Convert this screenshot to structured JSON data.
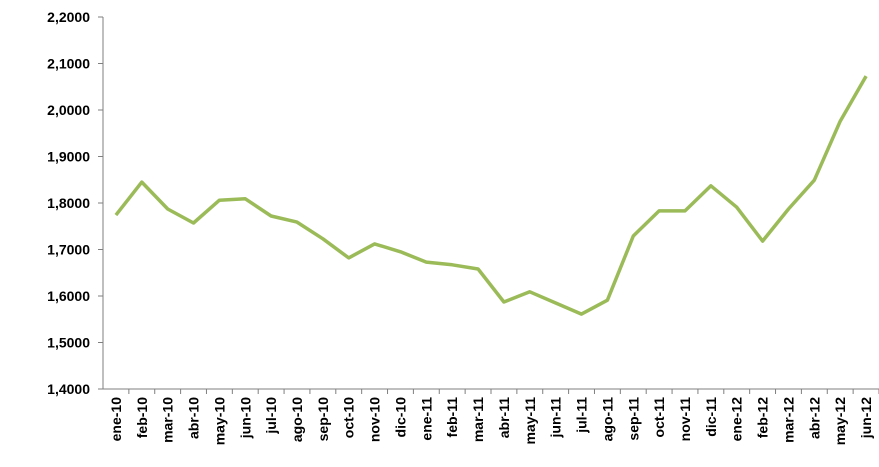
{
  "chart_data": {
    "type": "line",
    "categories": [
      "ene-10",
      "feb-10",
      "mar-10",
      "abr-10",
      "may-10",
      "jun-10",
      "jul-10",
      "ago-10",
      "sep-10",
      "oct-10",
      "nov-10",
      "dic-10",
      "ene-11",
      "feb-11",
      "mar-11",
      "abr-11",
      "may-11",
      "jun-11",
      "jul-11",
      "ago-11",
      "sep-11",
      "oct-11",
      "nov-11",
      "dic-11",
      "ene-12",
      "feb-12",
      "mar-12",
      "abr-12",
      "may-12",
      "jun-12"
    ],
    "values": [
      1.774,
      1.845,
      1.787,
      1.757,
      1.806,
      1.809,
      1.772,
      1.759,
      1.723,
      1.682,
      1.712,
      1.695,
      1.673,
      1.667,
      1.658,
      1.587,
      1.609,
      1.585,
      1.561,
      1.591,
      1.729,
      1.783,
      1.783,
      1.837,
      1.791,
      1.718,
      1.787,
      1.849,
      1.976,
      2.073
    ],
    "color": "#9bbb59",
    "ylim": [
      1.4,
      2.2
    ],
    "yticks": [
      {
        "value": 1.4,
        "label": "1,4000"
      },
      {
        "value": 1.5,
        "label": "1,5000"
      },
      {
        "value": 1.6,
        "label": "1,6000"
      },
      {
        "value": 1.7,
        "label": "1,7000"
      },
      {
        "value": 1.8,
        "label": "1,8000"
      },
      {
        "value": 1.9,
        "label": "1,9000"
      },
      {
        "value": 2.0,
        "label": "2,0000"
      },
      {
        "value": 2.1,
        "label": "2,1000"
      },
      {
        "value": 2.2,
        "label": "2,2000"
      }
    ],
    "grid": false
  }
}
